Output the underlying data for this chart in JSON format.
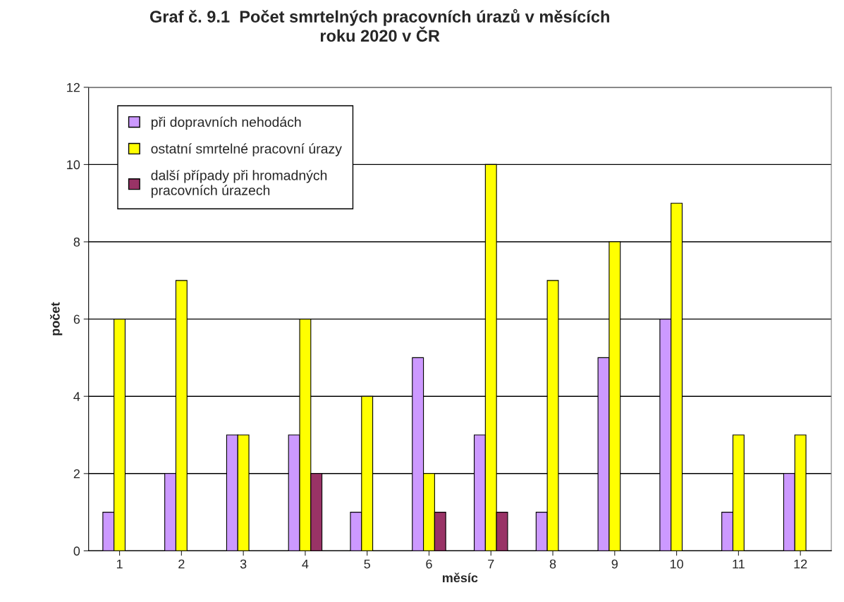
{
  "chart_data": {
    "type": "bar",
    "title": "Graf č. 9.1  Počet smrtelných pracovních úrazů v měsících\nroku 2020 v ČR",
    "xlabel": "měsíc",
    "ylabel": "počet",
    "categories": [
      "1",
      "2",
      "3",
      "4",
      "5",
      "6",
      "7",
      "8",
      "9",
      "10",
      "11",
      "12"
    ],
    "series": [
      {
        "name": "při dopravních nehodách",
        "color": "#cc99ff",
        "values": [
          1,
          2,
          3,
          3,
          1,
          5,
          3,
          1,
          5,
          6,
          1,
          2
        ]
      },
      {
        "name": "ostatní smrtelné pracovní úrazy",
        "color": "#ffff00",
        "values": [
          6,
          7,
          3,
          6,
          4,
          2,
          10,
          7,
          8,
          9,
          3,
          3
        ]
      },
      {
        "name": "další případy při hromadných\npracovních úrazech",
        "color": "#993366",
        "values": [
          null,
          null,
          null,
          2,
          null,
          1,
          1,
          null,
          null,
          null,
          null,
          null
        ]
      }
    ],
    "ylim": [
      0,
      12
    ],
    "yticks": [
      0,
      2,
      4,
      6,
      8,
      10,
      12
    ],
    "grid": "y",
    "legend": "top left"
  }
}
